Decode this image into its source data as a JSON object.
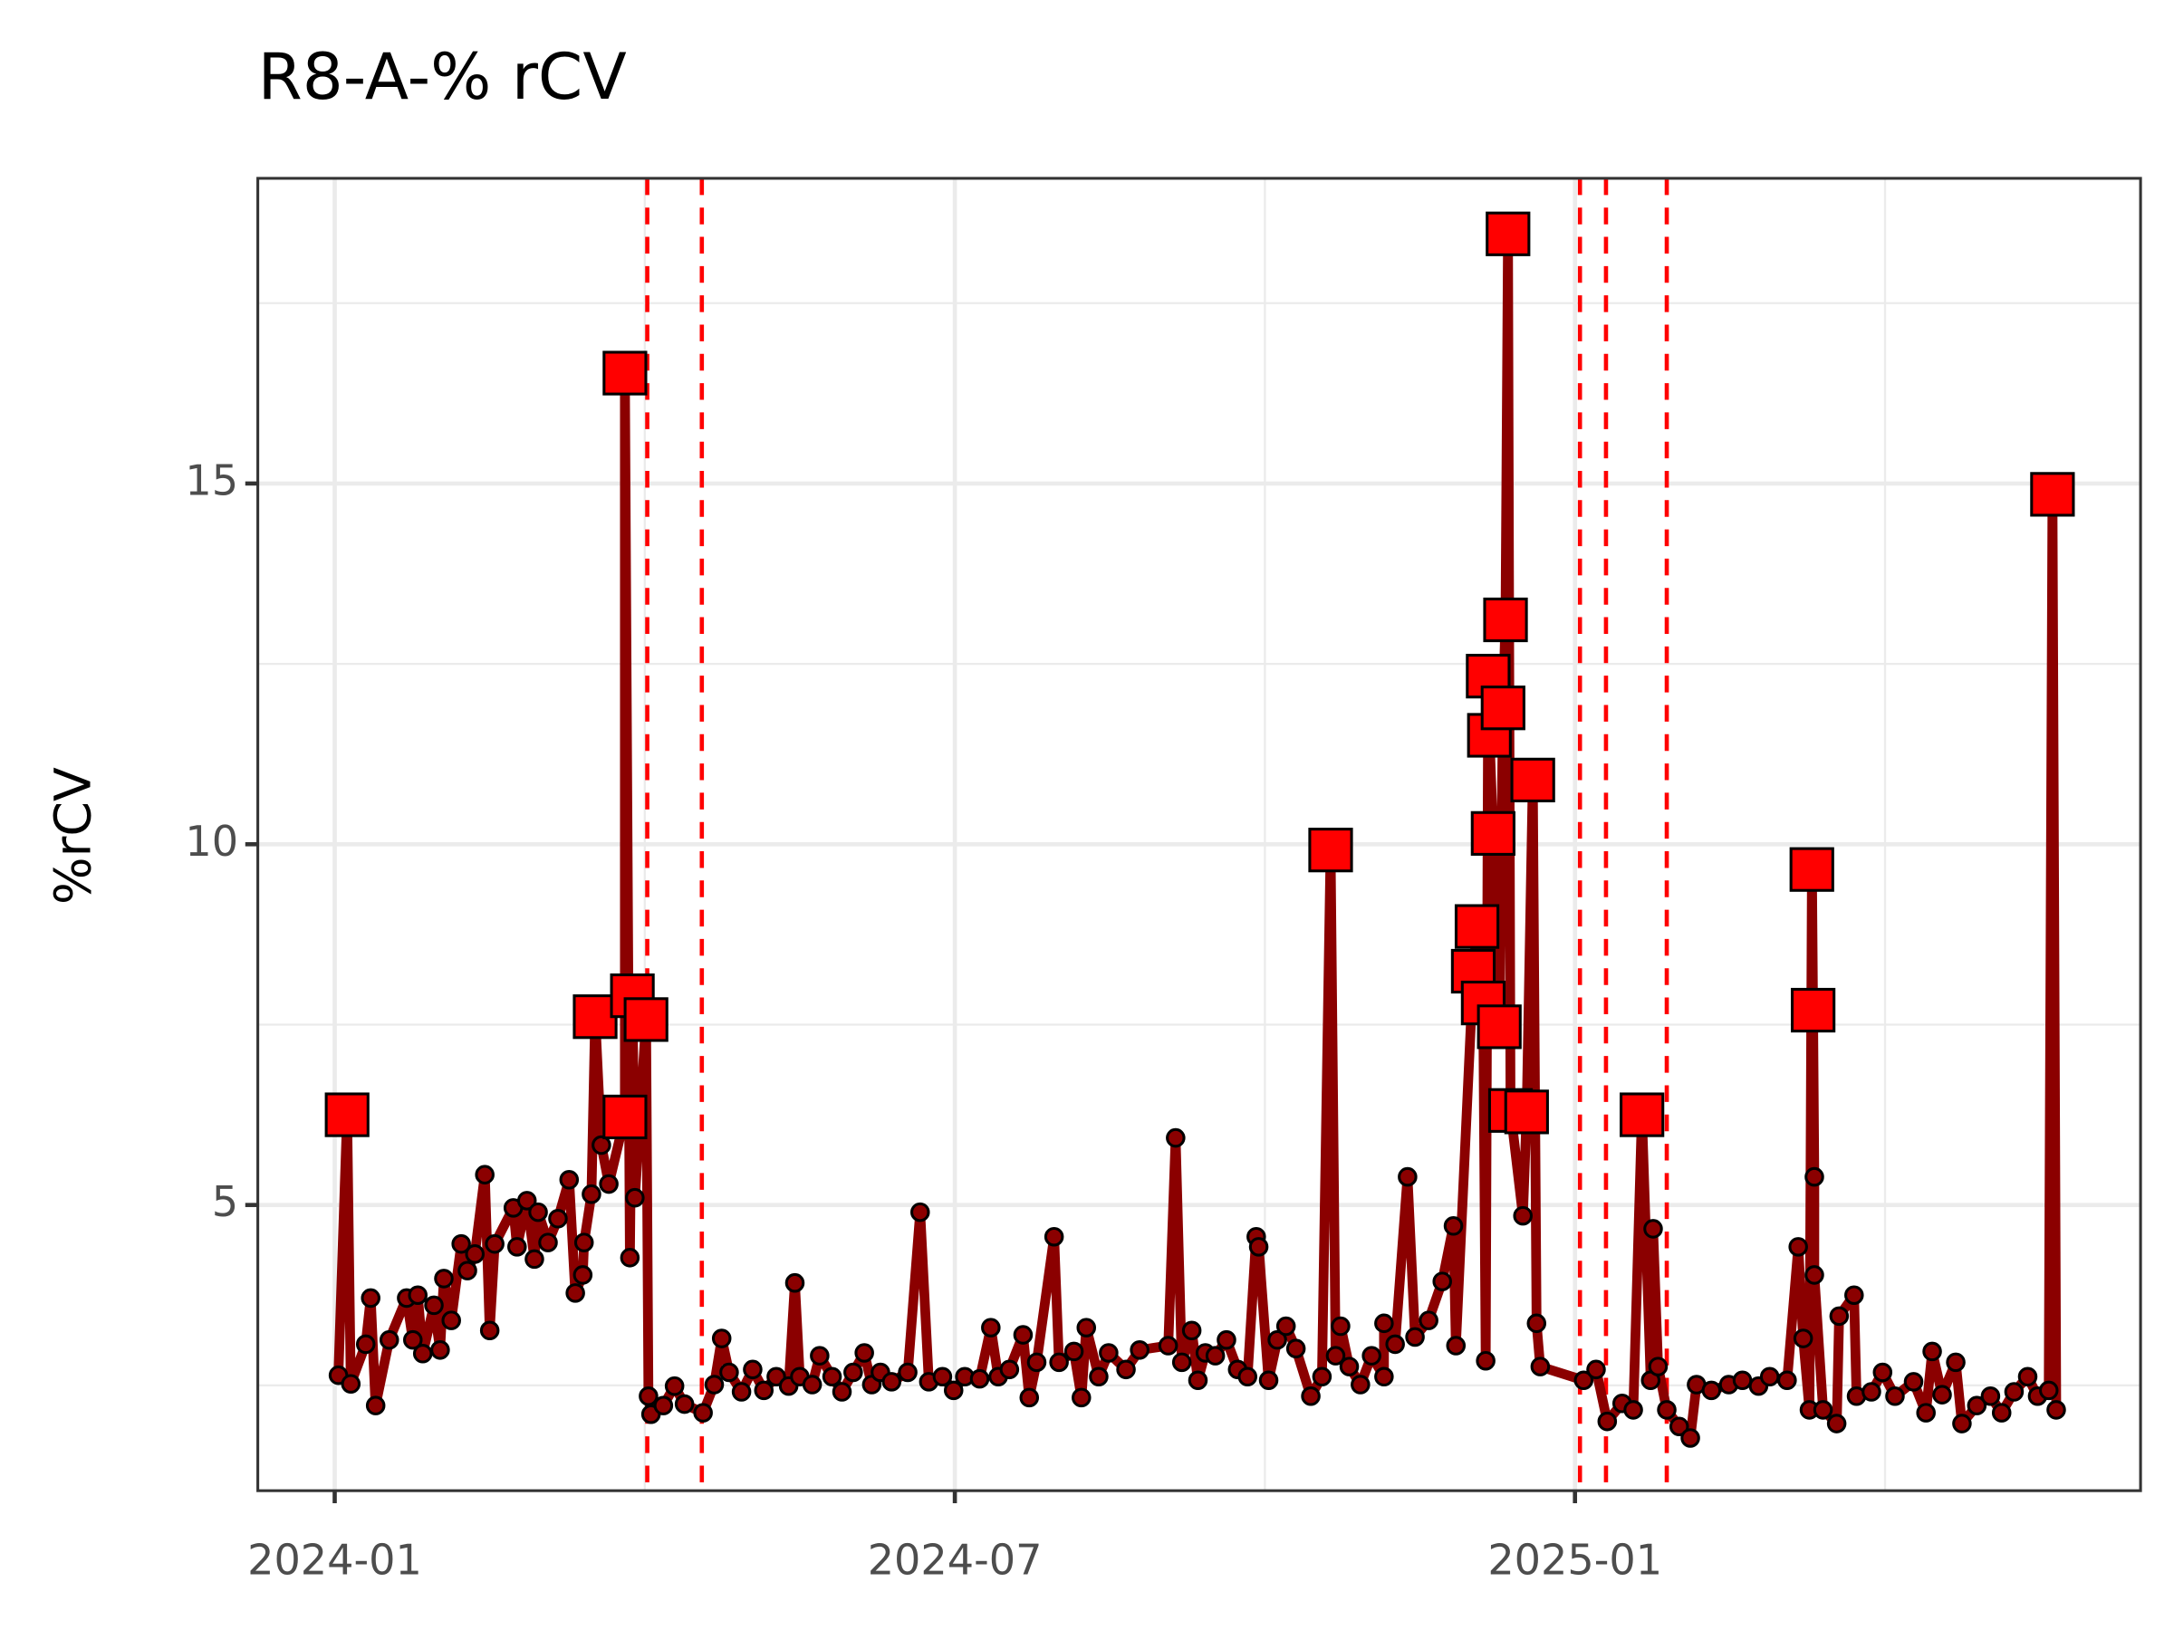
{
  "chart_data": {
    "type": "line",
    "title": "R8-A-% rCV",
    "y_label": "%rCV",
    "x": [
      2024.003,
      2024.01,
      2024.013,
      2024.025,
      2024.029,
      2024.033,
      2024.044,
      2024.058,
      2024.063,
      2024.067,
      2024.071,
      2024.08,
      2024.085,
      2024.088,
      2024.094,
      2024.102,
      2024.107,
      2024.113,
      2024.121,
      2024.125,
      2024.129,
      2024.144,
      2024.147,
      2024.155,
      2024.161,
      2024.164,
      2024.172,
      2024.18,
      2024.189,
      2024.194,
      2024.2,
      2024.201,
      2024.207,
      2024.21,
      2024.215,
      2024.221,
      2024.234,
      2024.234,
      2024.238,
      2024.24,
      2024.242,
      2024.251,
      2024.253,
      2024.255,
      2024.265,
      2024.274,
      2024.282,
      2024.297,
      2024.306,
      2024.312,
      2024.318,
      2024.328,
      2024.337,
      2024.346,
      2024.356,
      2024.366,
      2024.371,
      2024.375,
      2024.385,
      2024.391,
      2024.401,
      2024.409,
      2024.418,
      2024.427,
      2024.433,
      2024.44,
      2024.449,
      2024.462,
      2024.472,
      2024.479,
      2024.49,
      2024.499,
      2024.508,
      2024.52,
      2024.529,
      2024.535,
      2024.544,
      2024.555,
      2024.56,
      2024.566,
      2024.58,
      2024.584,
      2024.596,
      2024.602,
      2024.606,
      2024.616,
      2024.624,
      2024.638,
      2024.649,
      2024.672,
      2024.678,
      2024.683,
      2024.691,
      2024.696,
      2024.702,
      2024.71,
      2024.719,
      2024.728,
      2024.736,
      2024.743,
      2024.745,
      2024.753,
      2024.76,
      2024.767,
      2024.775,
      2024.787,
      2024.796,
      2024.803,
      2024.807,
      2024.811,
      2024.818,
      2024.827,
      2024.836,
      2024.846,
      2024.846,
      2024.855,
      2024.865,
      2024.871,
      2024.882,
      2024.893,
      2024.902,
      2024.904,
      2024.918,
      2024.921,
      2024.926,
      2024.928,
      2024.93,
      2024.931,
      2024.934,
      2024.939,
      2024.942,
      2024.944,
      2024.946,
      2024.948,
      2024.958,
      2024.961,
      2024.966,
      2024.969,
      2024.972,
      2025.007,
      2025.017,
      2025.026,
      2025.038,
      2025.047,
      2025.054,
      2025.061,
      2025.063,
      2025.067,
      2025.074,
      2025.084,
      2025.093,
      2025.098,
      2025.11,
      2025.124,
      2025.135,
      2025.148,
      2025.157,
      2025.171,
      2025.18,
      2025.184,
      2025.189,
      2025.191,
      2025.192,
      2025.193,
      2025.193,
      2025.2,
      2025.211,
      2025.213,
      2025.225,
      2025.227,
      2025.239,
      2025.248,
      2025.258,
      2025.273,
      2025.283,
      2025.288,
      2025.296,
      2025.307,
      2025.312,
      2025.324,
      2025.335,
      2025.344,
      2025.354,
      2025.365,
      2025.373,
      2025.382,
      2025.385,
      2025.388
    ],
    "values": [
      2.64,
      6.25,
      2.52,
      3.07,
      3.71,
      2.22,
      3.13,
      3.71,
      3.13,
      3.75,
      2.94,
      3.61,
      2.99,
      3.98,
      3.4,
      4.46,
      4.09,
      4.32,
      5.42,
      3.26,
      4.46,
      4.96,
      4.42,
      5.06,
      4.25,
      4.9,
      4.48,
      4.81,
      5.35,
      3.78,
      4.03,
      4.48,
      5.15,
      7.61,
      5.83,
      5.29,
      6.22,
      16.53,
      4.27,
      7.9,
      5.1,
      7.57,
      2.35,
      2.1,
      2.22,
      2.49,
      2.24,
      2.12,
      2.51,
      3.15,
      2.68,
      2.41,
      2.72,
      2.43,
      2.62,
      2.49,
      3.92,
      2.62,
      2.51,
      2.91,
      2.62,
      2.41,
      2.68,
      2.95,
      2.51,
      2.68,
      2.55,
      2.68,
      4.9,
      2.55,
      2.62,
      2.43,
      2.62,
      2.59,
      3.3,
      2.62,
      2.72,
      3.2,
      2.33,
      2.82,
      4.56,
      2.82,
      2.97,
      2.33,
      3.3,
      2.62,
      2.95,
      2.72,
      2.99,
      3.05,
      5.93,
      2.82,
      3.26,
      2.57,
      2.95,
      2.91,
      3.13,
      2.72,
      2.62,
      4.56,
      4.42,
      2.57,
      3.13,
      3.32,
      3.01,
      2.35,
      2.62,
      9.92,
      2.91,
      3.32,
      2.76,
      2.51,
      2.91,
      2.62,
      3.36,
      3.07,
      5.39,
      3.17,
      3.4,
      3.94,
      4.71,
      3.05,
      8.24,
      8.86,
      7.8,
      2.84,
      12.33,
      11.51,
      10.15,
      7.47,
      11.89,
      13.11,
      18.46,
      6.31,
      4.85,
      6.29,
      10.89,
      3.36,
      2.76,
      2.57,
      2.72,
      2.0,
      2.25,
      2.16,
      6.25,
      2.57,
      4.67,
      2.76,
      2.16,
      1.93,
      1.77,
      2.51,
      2.43,
      2.51,
      2.57,
      2.49,
      2.62,
      2.57,
      4.42,
      3.15,
      2.16,
      9.65,
      7.7,
      5.39,
      4.03,
      2.16,
      1.97,
      3.46,
      3.75,
      2.35,
      2.41,
      2.68,
      2.35,
      2.55,
      2.12,
      2.97,
      2.37,
      2.82,
      1.97,
      2.22,
      2.35,
      2.12,
      2.41,
      2.62,
      2.35,
      2.43,
      14.85,
      2.16
    ],
    "outlier": [
      false,
      true,
      false,
      false,
      false,
      false,
      false,
      false,
      false,
      false,
      false,
      false,
      false,
      false,
      false,
      false,
      false,
      false,
      false,
      false,
      false,
      false,
      false,
      false,
      false,
      false,
      false,
      false,
      false,
      false,
      false,
      false,
      false,
      true,
      false,
      false,
      true,
      true,
      false,
      true,
      false,
      true,
      false,
      false,
      false,
      false,
      false,
      false,
      false,
      false,
      false,
      false,
      false,
      false,
      false,
      false,
      false,
      false,
      false,
      false,
      false,
      false,
      false,
      false,
      false,
      false,
      false,
      false,
      false,
      false,
      false,
      false,
      false,
      false,
      false,
      false,
      false,
      false,
      false,
      false,
      false,
      false,
      false,
      false,
      false,
      false,
      false,
      false,
      false,
      false,
      false,
      false,
      false,
      false,
      false,
      false,
      false,
      false,
      false,
      false,
      false,
      false,
      false,
      false,
      false,
      false,
      false,
      true,
      false,
      false,
      false,
      false,
      false,
      false,
      false,
      false,
      false,
      false,
      false,
      false,
      false,
      false,
      true,
      true,
      true,
      false,
      true,
      true,
      true,
      true,
      true,
      true,
      true,
      true,
      false,
      true,
      true,
      false,
      false,
      false,
      false,
      false,
      false,
      false,
      true,
      false,
      false,
      false,
      false,
      false,
      false,
      false,
      false,
      false,
      false,
      false,
      false,
      false,
      false,
      false,
      false,
      true,
      true,
      false,
      false,
      false,
      false,
      false,
      false,
      false,
      false,
      false,
      false,
      false,
      false,
      false,
      false,
      false,
      false,
      false,
      false,
      false,
      false,
      false,
      false,
      false,
      true,
      false
    ],
    "line_color": "#8b0000",
    "point_color": "#8b0000",
    "outlier_color": "#ff0000",
    "vlines": [
      2024.252,
      2024.296,
      2025.004,
      2025.025,
      2025.074
    ],
    "vline_color": "#ff0000",
    "xlim": [
      2023.938,
      2025.456
    ],
    "ylim": [
      1.04,
      19.23
    ],
    "xticks": [
      {
        "value": 2024.0,
        "label": "2024-01"
      },
      {
        "value": 2024.5,
        "label": "2024-07"
      },
      {
        "value": 2025.0,
        "label": "2025-01"
      }
    ],
    "yticks": [
      5,
      10,
      15
    ],
    "grid": true
  }
}
